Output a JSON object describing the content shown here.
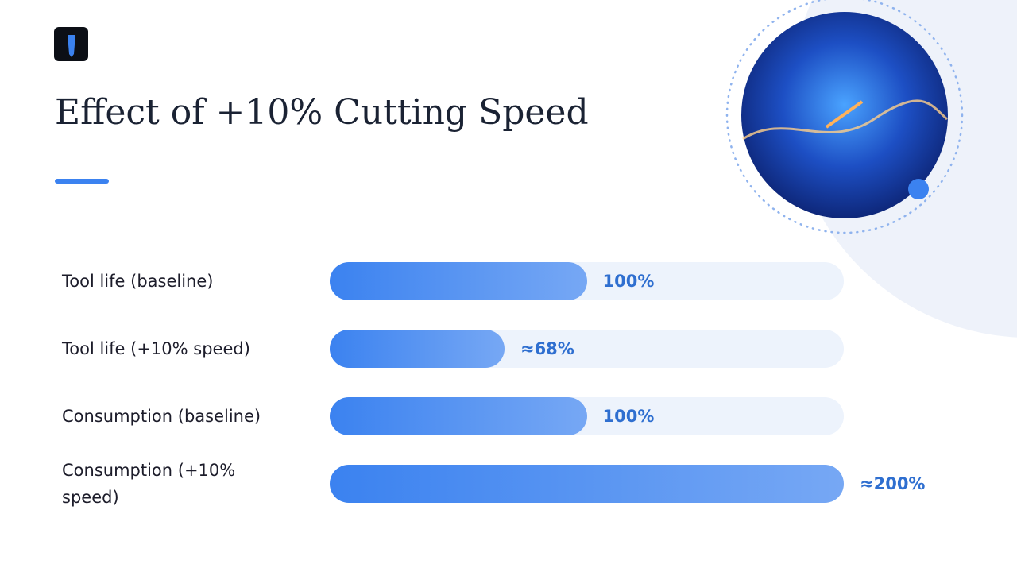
{
  "chart_data": {
    "type": "bar",
    "orientation": "horizontal",
    "title": "Effect of +10% Cutting Speed",
    "categories": [
      "Tool life (baseline)",
      "Tool life (+10% speed)",
      "Consumption (baseline)",
      "Consumption (+10% speed)"
    ],
    "values": [
      100,
      68,
      100,
      200
    ],
    "value_labels": [
      "100%",
      "≈68%",
      "100%",
      "≈200%"
    ],
    "color": "#3b82f0",
    "xlim": [
      0,
      200
    ]
  }
}
